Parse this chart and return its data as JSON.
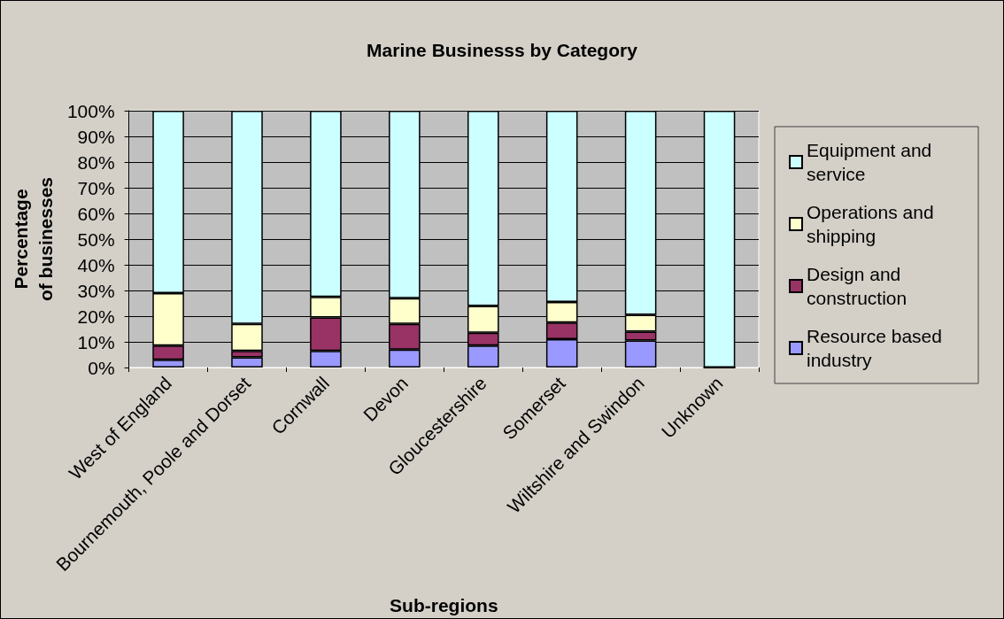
{
  "chart_data": {
    "type": "bar",
    "title": "Marine Businesss by Category",
    "xlabel": "Sub-regions",
    "ylabel": "Percentage of businesses",
    "categories": [
      "West of England",
      "Bournemouth, Poole and Dorset",
      "Cornwall",
      "Devon",
      "Gloucestershire",
      "Somerset",
      "Wiltshire and Swindon",
      "Unknown"
    ],
    "series": [
      {
        "name": "Resource based industry",
        "color": "#9999ff",
        "values": [
          3,
          4,
          6.5,
          7,
          8.5,
          11,
          10.5,
          0
        ]
      },
      {
        "name": "Design and construction",
        "color": "#993366",
        "values": [
          5.5,
          2.5,
          13,
          10,
          5,
          6.5,
          3.5,
          0
        ]
      },
      {
        "name": "Operations and shipping",
        "color": "#ffffcc",
        "values": [
          20.5,
          10.5,
          8,
          10,
          10.5,
          8,
          6.5,
          0
        ]
      },
      {
        "name": "Equipment and service",
        "color": "#ccffff",
        "values": [
          71,
          83,
          72.5,
          73,
          76,
          74.5,
          79.5,
          100
        ]
      }
    ],
    "stacked": true,
    "ylim": [
      0,
      100
    ],
    "yticks": [
      {
        "value": 0,
        "label": "0%"
      },
      {
        "value": 10,
        "label": "10%"
      },
      {
        "value": 20,
        "label": "20%"
      },
      {
        "value": 30,
        "label": "30%"
      },
      {
        "value": 40,
        "label": "40%"
      },
      {
        "value": 50,
        "label": "50%"
      },
      {
        "value": 60,
        "label": "60%"
      },
      {
        "value": 70,
        "label": "70%"
      },
      {
        "value": 80,
        "label": "80%"
      },
      {
        "value": 90,
        "label": "90%"
      },
      {
        "value": 100,
        "label": "100%"
      }
    ],
    "grid": "y",
    "legend": "right"
  }
}
